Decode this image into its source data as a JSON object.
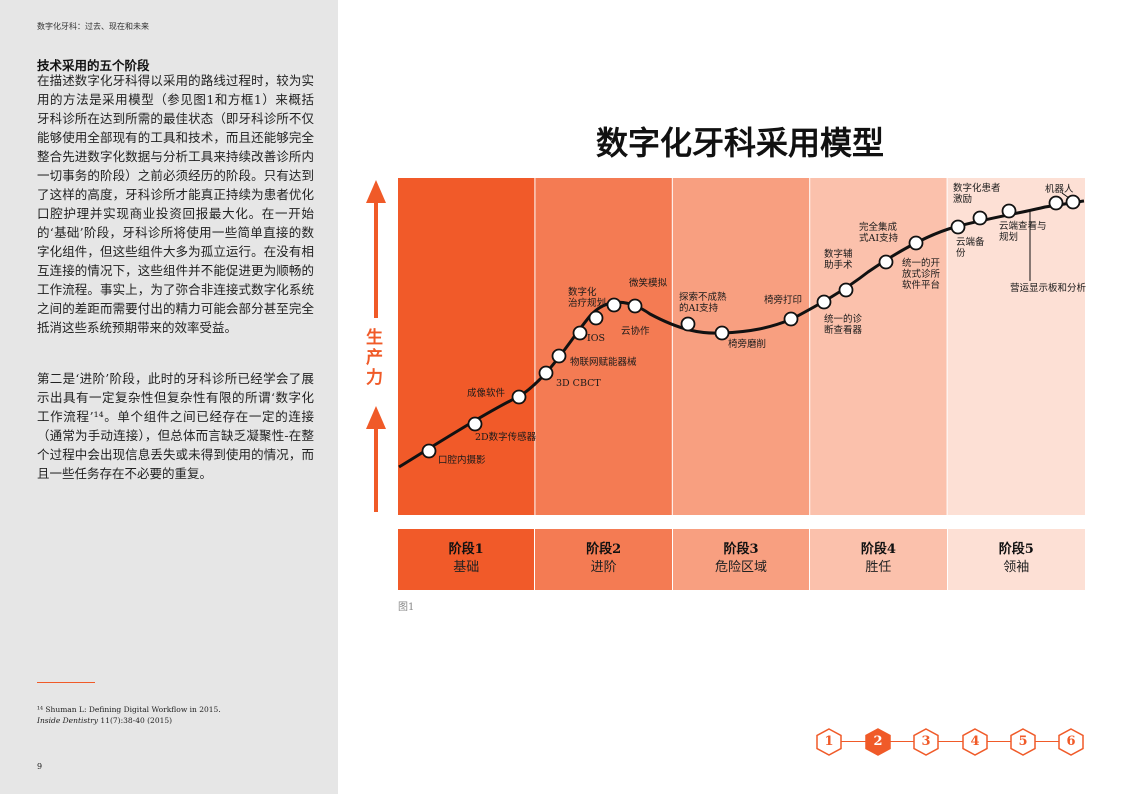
{
  "header": "数字化牙科：过去、现在和未来",
  "section_title": "技术采用的五个阶段",
  "para1": "在描述数字化牙科得以采用的路线过程时，较为实用的方法是采用模型（参见图1和方框1）来概括牙科诊所在达到所需的最佳状态（即牙科诊所不仅能够使用全部现有的工具和技术，而且还能够完全整合先进数字化数据与分析工具来持续改善诊所内一切事务的阶段）之前必须经历的阶段。只有达到了这样的高度，牙科诊所才能真正持续为患者优化口腔护理并实现商业投资回报最大化。在一开始的‘基础’阶段，牙科诊所将使用一些简单直接的数字化组件，但这些组件大多为孤立运行。在没有相互连接的情况下，这些组件并不能促进更为顺畅的工作流程。事实上，为了弥合非连接式数字化系统之间的差距而需要付出的精力可能会部分甚至完全抵消这些系统预期带来的效率受益。",
  "para2": "第二是‘进阶’阶段，此时的牙科诊所已经学会了展示出具有一定复杂性但复杂性有限的所谓‘数字化工作流程’¹⁴。单个组件之间已经存在一定的连接（通常为手动连接），但总体而言缺乏凝聚性-在整个过程中会出现信息丢失或未得到使用的情况，而且一些任务存在不必要的重复。",
  "footnote_line1": "¹⁴ Shuman L: Defining Digital Workflow in 2015.",
  "footnote_journal": "Inside Dentistry",
  "footnote_rest": " 11(7):38-40 (2015)",
  "page_number": "9",
  "figure_caption": "图1",
  "chart_data": {
    "type": "diagram",
    "title": "数字化牙科采用模型",
    "ylabel": "生产力",
    "band_colors": [
      "#f15a29",
      "#f47b53",
      "#f89f80",
      "#fbc1ac",
      "#fde0d5"
    ],
    "stages": [
      {
        "name": "阶段1",
        "desc": "基础"
      },
      {
        "name": "阶段2",
        "desc": "进阶"
      },
      {
        "name": "阶段3",
        "desc": "危险区域"
      },
      {
        "name": "阶段4",
        "desc": "胜任"
      },
      {
        "name": "阶段5",
        "desc": "领袖"
      }
    ],
    "milestones": [
      {
        "label": "口腔内摄影",
        "stage": 1
      },
      {
        "label": "2D数字传感器",
        "stage": 1
      },
      {
        "label": "成像软件",
        "stage": 1
      },
      {
        "label": "3D CBCT",
        "stage": 2
      },
      {
        "label": "物联网赋能器械",
        "stage": 2
      },
      {
        "label": "IOS",
        "stage": 2
      },
      {
        "label": "数字化治疗规划",
        "stage": 2
      },
      {
        "label": "云协作",
        "stage": 2
      },
      {
        "label": "微笑模拟",
        "stage": 2
      },
      {
        "label": "探索不成熟的AI支持",
        "stage": 3
      },
      {
        "label": "椅旁磨削",
        "stage": 3
      },
      {
        "label": "椅旁打印",
        "stage": 3
      },
      {
        "label": "统一的诊断查看器",
        "stage": 4
      },
      {
        "label": "数字辅助手术",
        "stage": 4
      },
      {
        "label": "统一的开放式诊所软件平台",
        "stage": 4
      },
      {
        "label": "完全集成式AI支持",
        "stage": 4
      },
      {
        "label": "云端备份",
        "stage": 5
      },
      {
        "label": "数字化患者激励",
        "stage": 5
      },
      {
        "label": "云端查看与规划",
        "stage": 5
      },
      {
        "label": "机器人",
        "stage": 5
      },
      {
        "label": "营运显示板和分析",
        "stage": 5
      }
    ]
  },
  "page_nav": [
    "1",
    "2",
    "3",
    "4",
    "5",
    "6"
  ],
  "active_page": "2",
  "accent_color": "#f05a28"
}
